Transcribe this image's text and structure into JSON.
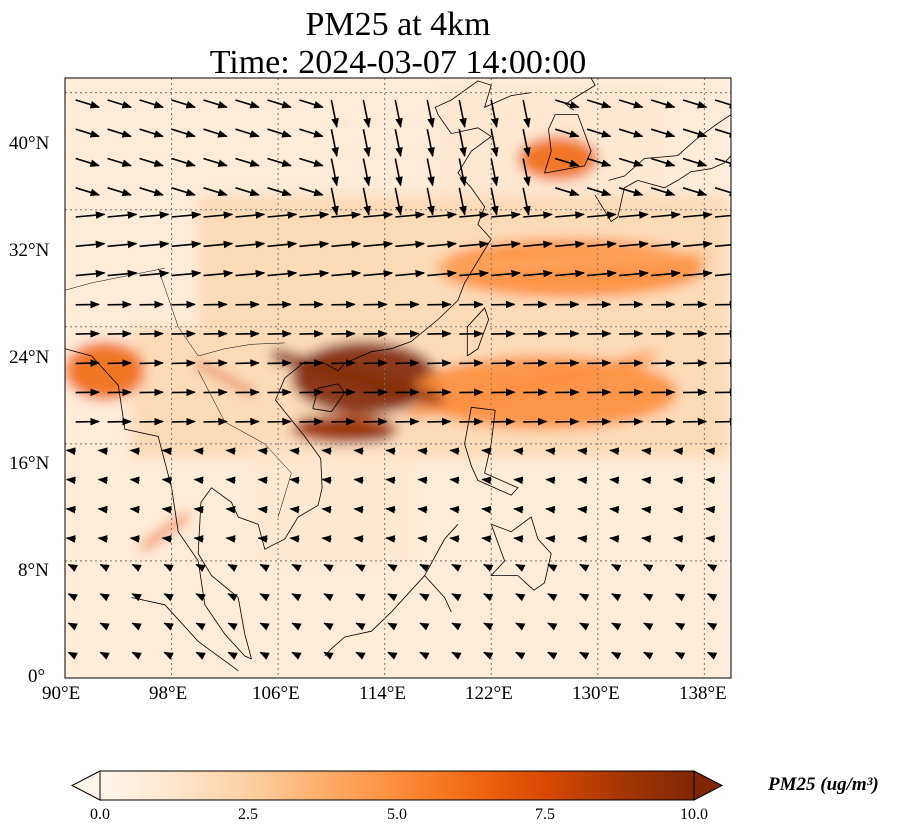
{
  "title": {
    "line1": "PM25 at 4km",
    "line2": "Time: 2024-03-07 14:00:00"
  },
  "axes": {
    "lat_ticks": [
      "0°",
      "8°N",
      "16°N",
      "24°N",
      "32°N",
      "40°N"
    ],
    "lon_ticks": [
      "90°E",
      "98°E",
      "106°E",
      "114°E",
      "122°E",
      "130°E",
      "138°E"
    ],
    "lat_range": [
      0,
      41
    ],
    "lon_range": [
      90,
      140
    ]
  },
  "colorbar": {
    "label": "PM25 (ug/m³)",
    "ticks": [
      "0.0",
      "2.5",
      "5.0",
      "7.5",
      "10.0"
    ],
    "range": [
      0,
      10
    ],
    "colormap": [
      "#fff5eb",
      "#fee6ce",
      "#fdd0a2",
      "#fdae6b",
      "#fd8d3c",
      "#f16913",
      "#d94801",
      "#a63603",
      "#7f2704"
    ],
    "extend": "both"
  },
  "map_info": {
    "field": "PM25 concentration with wind vectors",
    "grid": "dotted gray at 8° intervals",
    "high_regions": [
      {
        "region": "south China / Guangxi-Guangdong",
        "lon": [
          107,
          118
        ],
        "lat": [
          18,
          23
        ],
        "level": 10
      },
      {
        "region": "Gulf of Tonkin",
        "lon": [
          107,
          115
        ],
        "lat": [
          16,
          18
        ],
        "level": 9
      },
      {
        "region": "Yellow Sea / Korea",
        "lon": [
          124,
          130
        ],
        "lat": [
          34,
          37
        ],
        "level": 6
      },
      {
        "region": "East China Sea plume",
        "lon": [
          118,
          138
        ],
        "lat": [
          26,
          30
        ],
        "level": 5
      },
      {
        "region": "Taiwan-Luzon plume",
        "lon": [
          116,
          136
        ],
        "lat": [
          17,
          22
        ],
        "level": 5
      },
      {
        "region": "Myanmar coast",
        "lon": [
          90,
          96
        ],
        "lat": [
          19,
          23
        ],
        "level": 6
      }
    ]
  }
}
